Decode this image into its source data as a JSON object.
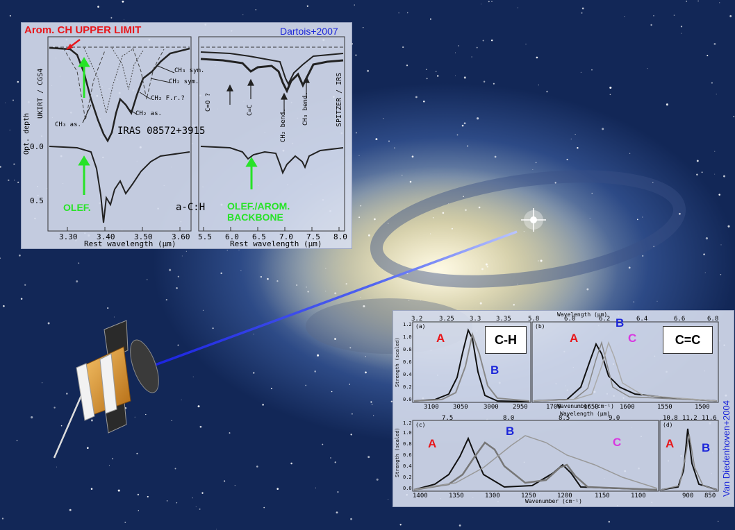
{
  "top_panel": {
    "arom_limit": "Arom. CH UPPER LIMIT",
    "citation": "Dartois+2007",
    "left_axis_labels": [
      "UKIRT / CGS4",
      "Opt. depth"
    ],
    "right_axis_label": "SPITZER / IRS",
    "opt_depth_ticks": [
      "0.0",
      "0.5"
    ],
    "annotations_left": [
      "CH₃ sym.",
      "CH₂ sym.",
      "CH₂ F.r.?",
      "CH₂ as.",
      "CH₃ as."
    ],
    "annotations_right": [
      "C=O ?",
      "C=C",
      "CH₂ bend.",
      "CH₃ bend."
    ],
    "source": "IRAS 08572+3915",
    "ach": "a-C:H",
    "olef": "OLEF.",
    "olef_arom_1": "OLEF./AROM.",
    "olef_arom_2": "BACKBONE",
    "xticks_left": [
      "3.30",
      "3.40",
      "3.50",
      "3.60"
    ],
    "xticks_right": [
      "5.5",
      "6.0",
      "6.5",
      "7.0",
      "7.5",
      "8.0"
    ],
    "xlabel": "Rest wavelength (μm)"
  },
  "bottom_panel": {
    "citation": "Van Diedenhoven+2004",
    "wavelength_label": "Wavelength (μm)",
    "wavenumber_label": "Wavenumber (cm⁻¹)",
    "strength_label": "Strength (scaled)",
    "panel_a": {
      "tag": "(a)",
      "box": "C-H",
      "top_ticks": [
        "3.2",
        "3.25",
        "3.3",
        "3.35"
      ],
      "bottom_ticks": [
        "3100",
        "3050",
        "3000",
        "2950"
      ]
    },
    "panel_b": {
      "tag": "(b)",
      "box": "C=C",
      "top_ticks": [
        "5.8",
        "6.0",
        "6.2",
        "6.4",
        "6.6",
        "6.8"
      ],
      "bottom_ticks": [
        "1700",
        "1650",
        "1600",
        "1550",
        "1500"
      ]
    },
    "panel_c": {
      "tag": "(c)",
      "top_ticks": [
        "7.5",
        "8.0",
        "8.5",
        "9.0"
      ],
      "bottom_ticks": [
        "1400",
        "1350",
        "1300",
        "1250",
        "1200",
        "1150",
        "1100"
      ]
    },
    "panel_d": {
      "tag": "(d)",
      "top_ticks": [
        "10.8",
        "11.2",
        "11.6"
      ],
      "bottom_ticks": [
        "900",
        "850"
      ]
    },
    "y_ticks": [
      "0.0",
      "0.2",
      "0.4",
      "0.6",
      "0.8",
      "1.0",
      "1.2"
    ],
    "letter_a": "A",
    "letter_b": "B",
    "letter_c": "C"
  },
  "colors": {
    "red": "#e8161a",
    "green": "#27e327",
    "blue": "#1c26d9",
    "magenta": "#d837e0"
  }
}
